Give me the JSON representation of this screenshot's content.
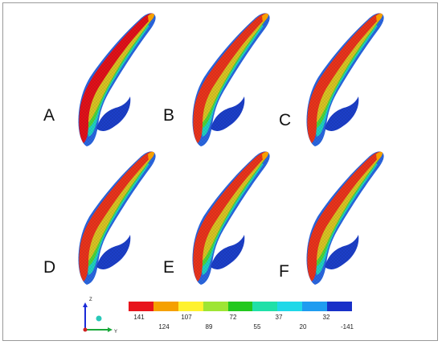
{
  "panels": [
    {
      "letter": "A",
      "stress_level": "high"
    },
    {
      "letter": "B",
      "stress_level": "medium"
    },
    {
      "letter": "C",
      "stress_level": "medium"
    },
    {
      "letter": "D",
      "stress_level": "medium"
    },
    {
      "letter": "E",
      "stress_level": "medium"
    },
    {
      "letter": "F",
      "stress_level": "medium"
    }
  ],
  "legend": {
    "colors": [
      "#e8141c",
      "#f5a000",
      "#fff22e",
      "#9ee534",
      "#22c81e",
      "#1fe0a8",
      "#1fd8e8",
      "#1f9cf0",
      "#1830c8"
    ],
    "upper_labels": [
      "141",
      "72",
      "37",
      "32"
    ],
    "lower_labels": [
      "124",
      "107",
      "89",
      "55",
      "20",
      "-141"
    ]
  },
  "axes": {
    "z_label": "Z",
    "y_label": "Y"
  }
}
